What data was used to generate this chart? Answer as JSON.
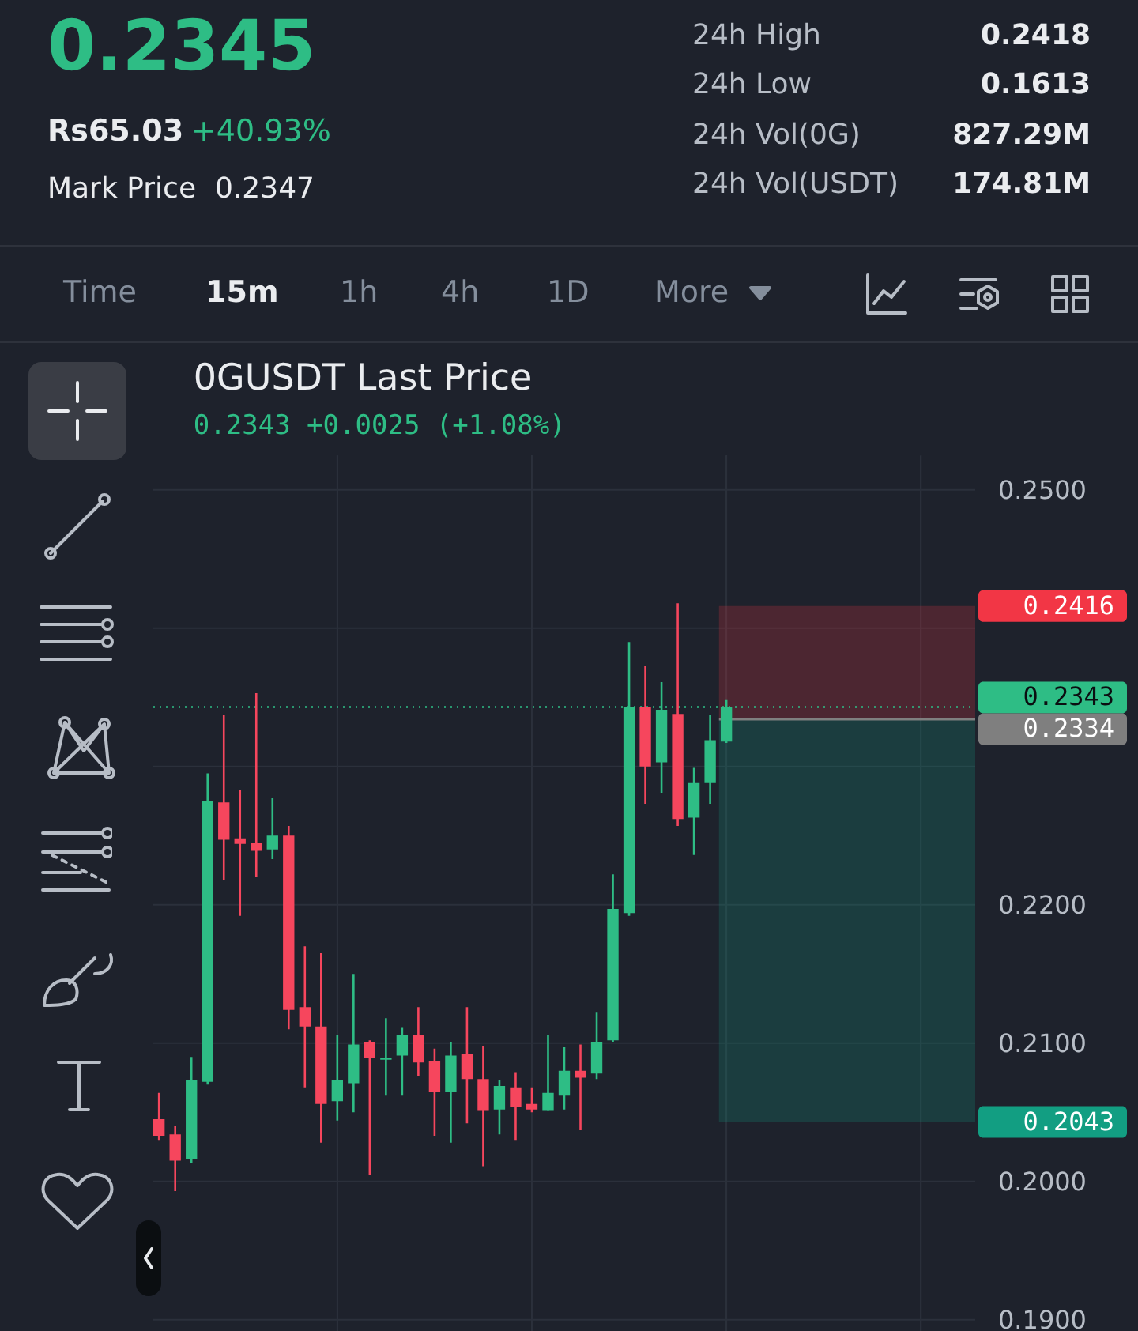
{
  "chart_data": {
    "type": "candlestick",
    "title": "0GUSDT Last Price",
    "subtitle": "0.2343  +0.0025 (+1.08%)",
    "categories": [
      null,
      null,
      null,
      null,
      null,
      null,
      null,
      null,
      null,
      null,
      null,
      null,
      null,
      null,
      null,
      null,
      null,
      null,
      null,
      null,
      null,
      null,
      null,
      null,
      null,
      null,
      null,
      null,
      null,
      null,
      null,
      null,
      null,
      null,
      null,
      null,
      null,
      null,
      null,
      null,
      null,
      null,
      null,
      null,
      null,
      null,
      null,
      null,
      null,
      null,
      null
    ],
    "ohlc": [
      [
        0.2045,
        0.2064,
        0.203,
        0.2033
      ],
      [
        0.2034,
        0.204,
        0.1993,
        0.2015
      ],
      [
        0.2016,
        0.209,
        0.2013,
        0.2073
      ],
      [
        0.2072,
        0.2295,
        0.207,
        0.2275
      ],
      [
        0.2274,
        0.2337,
        0.2218,
        0.2247
      ],
      [
        0.2248,
        0.2283,
        0.2192,
        0.2244
      ],
      [
        0.2245,
        0.2353,
        0.222,
        0.2239
      ],
      [
        0.224,
        0.2277,
        0.2233,
        0.225
      ],
      [
        0.225,
        0.2257,
        0.211,
        0.2124
      ],
      [
        0.2126,
        0.217,
        0.2068,
        0.2112
      ],
      [
        0.2112,
        0.2165,
        0.2028,
        0.2056
      ],
      [
        0.2058,
        0.2106,
        0.2044,
        0.2073
      ],
      [
        0.2071,
        0.215,
        0.205,
        0.2099
      ],
      [
        0.2101,
        0.2102,
        0.2005,
        0.2089
      ],
      [
        0.2088,
        0.2118,
        0.2062,
        0.2089
      ],
      [
        0.2091,
        0.2111,
        0.2062,
        0.2106
      ],
      [
        0.2106,
        0.2126,
        0.2076,
        0.2086
      ],
      [
        0.2087,
        0.2096,
        0.2033,
        0.2065
      ],
      [
        0.2065,
        0.2101,
        0.2028,
        0.2091
      ],
      [
        0.2092,
        0.2126,
        0.2042,
        0.2074
      ],
      [
        0.2074,
        0.2098,
        0.2011,
        0.2051
      ],
      [
        0.2052,
        0.2073,
        0.2034,
        0.2069
      ],
      [
        0.2068,
        0.2079,
        0.203,
        0.2054
      ],
      [
        0.2056,
        0.2068,
        0.205,
        0.2052
      ],
      [
        0.2051,
        0.2106,
        0.2051,
        0.2064
      ],
      [
        0.2062,
        0.2097,
        0.2052,
        0.208
      ],
      [
        0.208,
        0.2099,
        0.2037,
        0.2075
      ],
      [
        0.2078,
        0.2122,
        0.2074,
        0.2101
      ],
      [
        0.2102,
        0.2222,
        0.2101,
        0.2197
      ],
      [
        0.2194,
        0.239,
        0.2192,
        0.2343
      ],
      [
        0.2343,
        0.2373,
        0.2273,
        0.23
      ],
      [
        0.2303,
        0.2361,
        0.2281,
        0.2341
      ],
      [
        0.2338,
        0.2418,
        0.2257,
        0.2262
      ],
      [
        0.2263,
        0.2299,
        0.2236,
        0.2288
      ],
      [
        0.2288,
        0.2337,
        0.2273,
        0.2319
      ],
      [
        0.2318,
        0.2348,
        0.2317,
        0.2343
      ],
      null,
      null,
      null,
      null,
      null,
      null,
      null,
      null,
      null,
      null,
      null,
      null,
      null,
      null,
      null
    ],
    "colors": [
      "#f6465d",
      "#f6465d",
      "#2ebd85",
      "#2ebd85",
      "#f6465d",
      "#f6465d",
      "#f6465d",
      "#2ebd85",
      "#f6465d",
      "#f6465d",
      "#f6465d",
      "#2ebd85",
      "#2ebd85",
      "#f6465d",
      "#2ebd85",
      "#2ebd85",
      "#f6465d",
      "#f6465d",
      "#2ebd85",
      "#f6465d",
      "#f6465d",
      "#2ebd85",
      "#f6465d",
      "#f6465d",
      "#2ebd85",
      "#2ebd85",
      "#f6465d",
      "#2ebd85",
      "#2ebd85",
      "#2ebd85",
      "#f6465d",
      "#2ebd85",
      "#f6465d",
      "#2ebd85",
      "#2ebd85",
      "#2ebd85",
      null,
      null,
      null,
      null,
      null,
      null,
      null,
      null,
      null,
      null,
      null,
      null,
      null,
      null,
      null
    ],
    "ylim": [
      0.1885,
      0.2525
    ],
    "yticks": [
      {
        "value": 0.19,
        "label": "0.1900"
      },
      {
        "value": 0.2,
        "label": "0.2000"
      },
      {
        "value": 0.21,
        "label": "0.2100"
      },
      {
        "value": 0.22,
        "label": "0.2200"
      },
      {
        "value": 0.23,
        "label": null
      },
      {
        "value": 0.24,
        "label": null
      },
      {
        "value": 0.25,
        "label": "0.2500"
      }
    ],
    "grid": true,
    "bands": [
      {
        "axis": "y",
        "from": 0.2334,
        "to": 0.2416,
        "label": "0.2416",
        "color": "#f23645"
      },
      {
        "axis": "y",
        "from": 0.2043,
        "to": 0.2334,
        "label": "0.2043",
        "color": "#129e82"
      }
    ],
    "ref_lines": [
      {
        "axis": "y",
        "value": 0.2343,
        "label": "0.2343",
        "color": "#2ebd85",
        "line_style": "dotted"
      },
      {
        "axis": "y",
        "value": 0.2334,
        "label": "0.2334",
        "color": "#7f7f7f",
        "line_style": "solid"
      }
    ],
    "annotations": [
      "0.2345",
      "Rs65.03",
      "+40.93%",
      "Mark Price",
      "0.2347",
      "24h High",
      "0.2418",
      "24h Low",
      "0.1613",
      "24h Vol(0G)",
      "827.29M",
      "24h Vol(USDT)",
      "174.81M",
      "Time",
      "15m",
      "1h",
      "4h",
      "1D",
      "More"
    ]
  }
}
